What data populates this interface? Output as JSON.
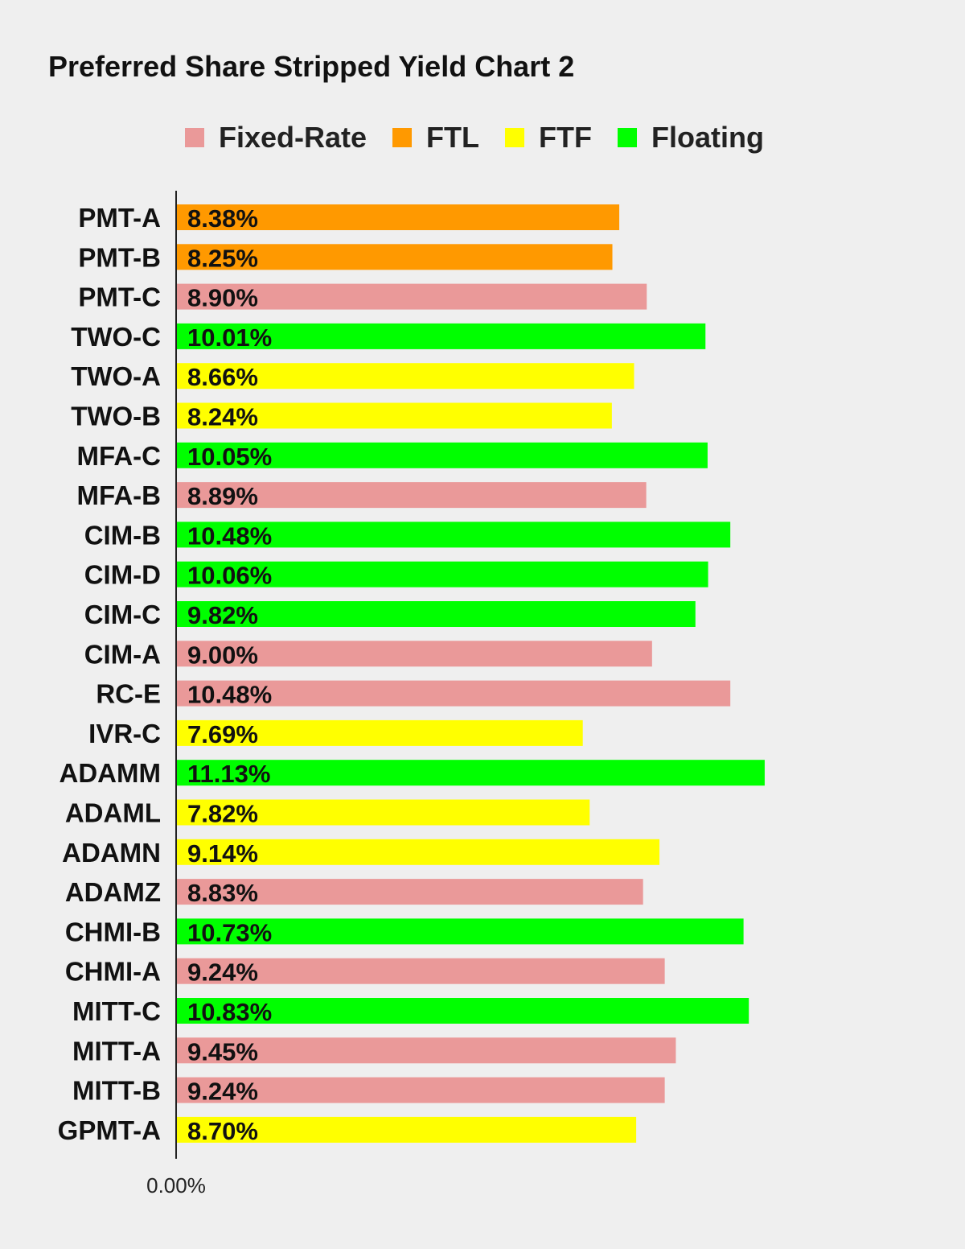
{
  "chart_data": {
    "type": "bar",
    "orientation": "horizontal",
    "title": "Preferred Share Stripped Yield Chart 2",
    "legend": [
      {
        "name": "Fixed-Rate",
        "color": "#ea9999"
      },
      {
        "name": "FTL",
        "color": "#ff9900"
      },
      {
        "name": "FTF",
        "color": "#ffff00"
      },
      {
        "name": "Floating",
        "color": "#00ff00"
      }
    ],
    "legend_position": "top",
    "xlim": [
      0,
      12.5
    ],
    "x_tick_labels": [
      "0.00%"
    ],
    "grid": false,
    "bars": [
      {
        "category": "PMT-A",
        "value": 8.38,
        "label": "8.38%",
        "type": "FTL"
      },
      {
        "category": "PMT-B",
        "value": 8.25,
        "label": "8.25%",
        "type": "FTL"
      },
      {
        "category": "PMT-C",
        "value": 8.9,
        "label": "8.90%",
        "type": "Fixed-Rate"
      },
      {
        "category": "TWO-C",
        "value": 10.01,
        "label": "10.01%",
        "type": "Floating"
      },
      {
        "category": "TWO-A",
        "value": 8.66,
        "label": "8.66%",
        "type": "FTF"
      },
      {
        "category": "TWO-B",
        "value": 8.24,
        "label": "8.24%",
        "type": "FTF"
      },
      {
        "category": "MFA-C",
        "value": 10.05,
        "label": "10.05%",
        "type": "Floating"
      },
      {
        "category": "MFA-B",
        "value": 8.89,
        "label": "8.89%",
        "type": "Fixed-Rate"
      },
      {
        "category": "CIM-B",
        "value": 10.48,
        "label": "10.48%",
        "type": "Floating"
      },
      {
        "category": "CIM-D",
        "value": 10.06,
        "label": "10.06%",
        "type": "Floating"
      },
      {
        "category": "CIM-C",
        "value": 9.82,
        "label": "9.82%",
        "type": "Floating"
      },
      {
        "category": "CIM-A",
        "value": 9.0,
        "label": "9.00%",
        "type": "Fixed-Rate"
      },
      {
        "category": "RC-E",
        "value": 10.48,
        "label": "10.48%",
        "type": "Fixed-Rate"
      },
      {
        "category": "IVR-C",
        "value": 7.69,
        "label": "7.69%",
        "type": "FTF"
      },
      {
        "category": "ADAMM",
        "value": 11.13,
        "label": "11.13%",
        "type": "Floating"
      },
      {
        "category": "ADAML",
        "value": 7.82,
        "label": "7.82%",
        "type": "FTF"
      },
      {
        "category": "ADAMN",
        "value": 9.14,
        "label": "9.14%",
        "type": "FTF"
      },
      {
        "category": "ADAMZ",
        "value": 8.83,
        "label": "8.83%",
        "type": "Fixed-Rate"
      },
      {
        "category": "CHMI-B",
        "value": 10.73,
        "label": "10.73%",
        "type": "Floating"
      },
      {
        "category": "CHMI-A",
        "value": 9.24,
        "label": "9.24%",
        "type": "Fixed-Rate"
      },
      {
        "category": "MITT-C",
        "value": 10.83,
        "label": "10.83%",
        "type": "Floating"
      },
      {
        "category": "MITT-A",
        "value": 9.45,
        "label": "9.45%",
        "type": "Fixed-Rate"
      },
      {
        "category": "MITT-B",
        "value": 9.24,
        "label": "9.24%",
        "type": "Fixed-Rate"
      },
      {
        "category": "GPMT-A",
        "value": 8.7,
        "label": "8.70%",
        "type": "FTF"
      }
    ]
  }
}
